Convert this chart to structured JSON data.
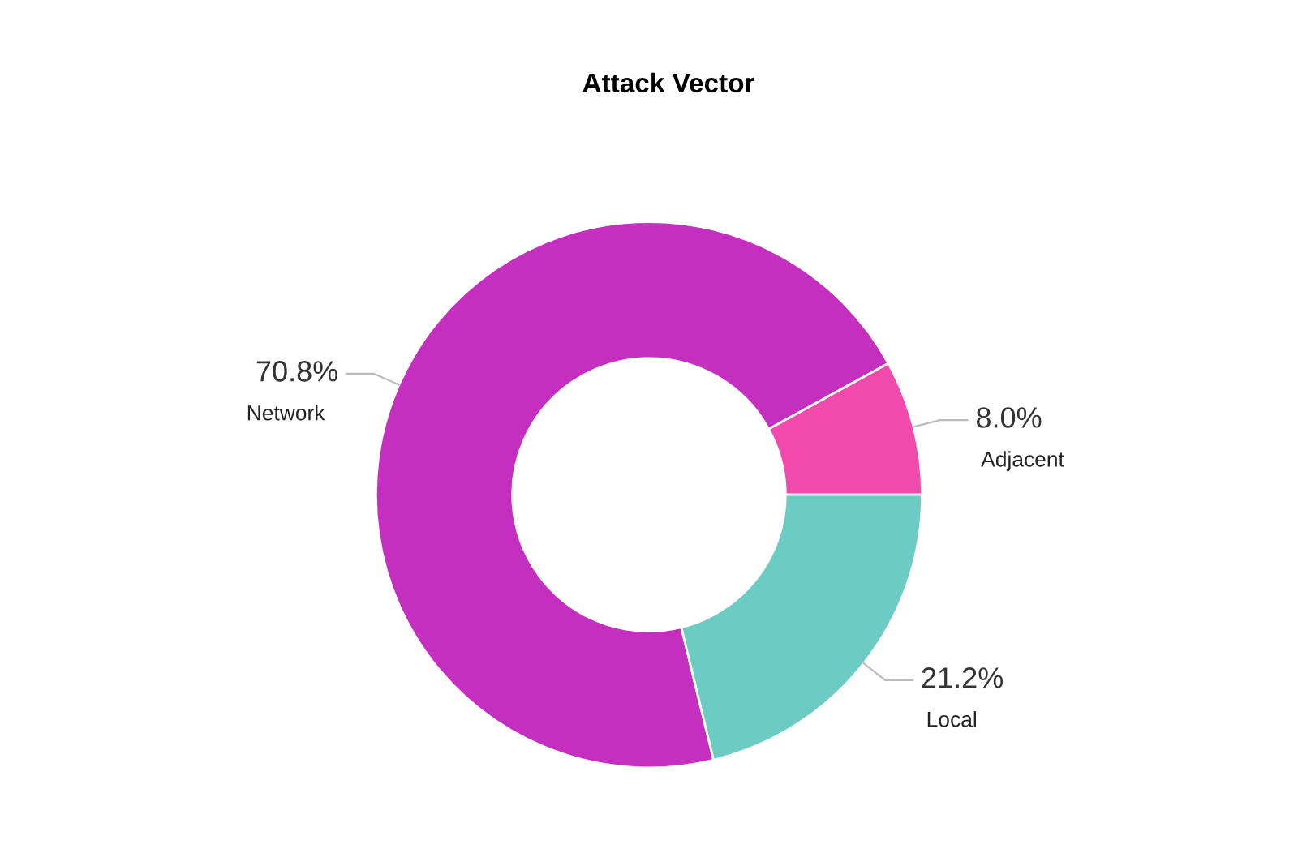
{
  "chart_data": {
    "type": "donut",
    "title": "Attack Vector",
    "categories": [
      "Adjacent",
      "Network",
      "Local"
    ],
    "values": [
      8.0,
      70.8,
      21.2
    ],
    "colors": [
      "#ef4aac",
      "#c42fc0",
      "#6cccc4"
    ],
    "value_labels": [
      "8.0%",
      "70.8%",
      "21.2%"
    ],
    "legend": false
  }
}
